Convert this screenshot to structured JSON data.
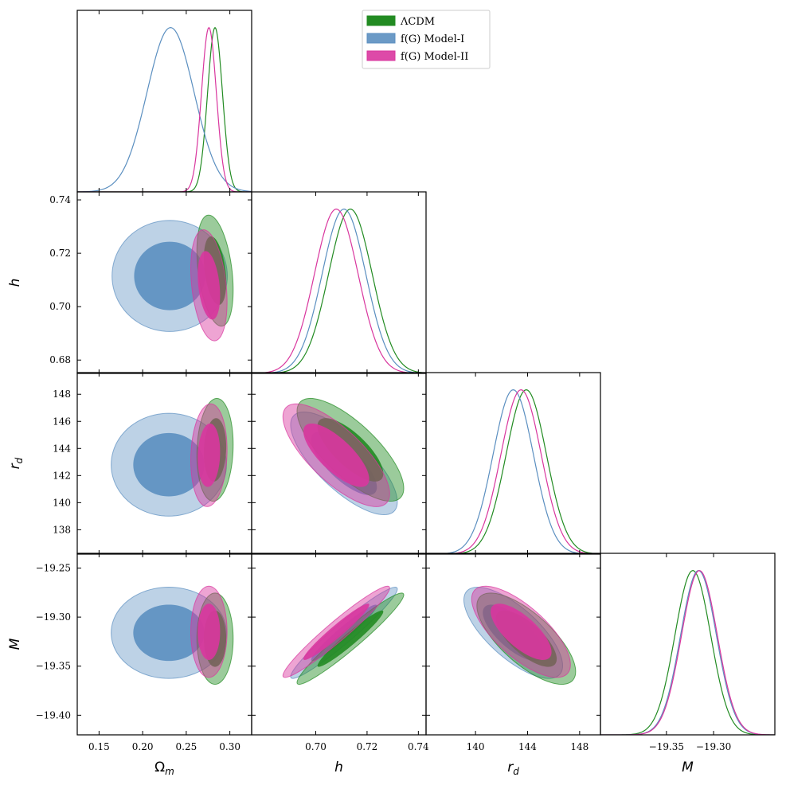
{
  "chart_data": {
    "type": "corner",
    "title": "",
    "colors": {
      "LCDM": "#228b22",
      "ModelI": "#5b8fc0",
      "ModelII": "#d9369e"
    },
    "legend": {
      "placement": "top-center",
      "entries": [
        {
          "key": "LCDM",
          "label": "ΛCDM"
        },
        {
          "key": "ModelI",
          "label": "f(G) Model-I"
        },
        {
          "key": "ModelII",
          "label": "f(G) Model-II"
        }
      ]
    },
    "parameters": [
      {
        "key": "Om",
        "label": "Ω",
        "sub": "m",
        "range": [
          0.125,
          0.325
        ],
        "ticks": [
          0.15,
          0.2,
          0.25,
          0.3
        ],
        "tick_labels": [
          "0.15",
          "0.20",
          "0.25",
          "0.30"
        ]
      },
      {
        "key": "h",
        "label": "h",
        "range": [
          0.675,
          0.743
        ],
        "ticks": [
          0.68,
          0.7,
          0.72,
          0.74
        ],
        "tick_labels": [
          "0.68",
          "0.70",
          "0.72",
          "0.74"
        ],
        "x_tick_labels": [
          "0.70",
          "0.72",
          "0.74"
        ]
      },
      {
        "key": "rd",
        "label": "r",
        "sub": "d",
        "range": [
          136.2,
          149.6
        ],
        "ticks": [
          138,
          140,
          142,
          144,
          146,
          148
        ],
        "tick_labels": [
          "138",
          "140",
          "142",
          "144",
          "146",
          "148"
        ],
        "x_ticks": [
          140,
          144,
          148
        ],
        "x_tick_labels": [
          "140",
          "144",
          "148"
        ]
      },
      {
        "key": "M",
        "label": "M",
        "range": [
          -19.42,
          -19.235
        ],
        "ticks": [
          -19.25,
          -19.3,
          -19.35,
          -19.4
        ],
        "tick_labels": [
          "−19.25",
          "−19.30",
          "−19.35",
          "−19.40"
        ],
        "x_ticks": [
          -19.35,
          -19.3
        ],
        "x_tick_labels": [
          "−19.35",
          "−19.30"
        ]
      }
    ],
    "marginals": {
      "Om": [
        {
          "model": "LCDM",
          "mean": 0.283,
          "sigma": 0.0085
        },
        {
          "model": "ModelI",
          "mean": 0.232,
          "sigma": 0.027
        },
        {
          "model": "ModelII",
          "mean": 0.276,
          "sigma": 0.0085
        }
      ],
      "h": [
        {
          "model": "LCDM",
          "mean": 0.7135,
          "sigma": 0.0085
        },
        {
          "model": "ModelI",
          "mean": 0.711,
          "sigma": 0.0085
        },
        {
          "model": "ModelII",
          "mean": 0.708,
          "sigma": 0.0085
        }
      ],
      "rd": [
        {
          "model": "LCDM",
          "mean": 143.9,
          "sigma": 1.55
        },
        {
          "model": "ModelI",
          "mean": 142.9,
          "sigma": 1.55
        },
        {
          "model": "ModelII",
          "mean": 143.5,
          "sigma": 1.55
        }
      ],
      "M": [
        {
          "model": "LCDM",
          "mean": -19.322,
          "sigma": 0.019
        },
        {
          "model": "ModelI",
          "mean": -19.316,
          "sigma": 0.019
        },
        {
          "model": "ModelII",
          "mean": -19.315,
          "sigma": 0.019
        }
      ]
    },
    "contours_note": "Each contour is an ellipse in data units: center (cx, cy), 1-sigma half-widths (sx, sy), correlation rho; inner region 68%, outer region 95%.",
    "contours": [
      {
        "x": "Om",
        "y": "h",
        "model": "ModelI",
        "cx": 0.231,
        "cy": 0.7115,
        "sx": 0.027,
        "sy": 0.0085,
        "rho": 0.0
      },
      {
        "x": "Om",
        "y": "h",
        "model": "LCDM",
        "cx": 0.283,
        "cy": 0.7135,
        "sx": 0.0085,
        "sy": 0.0085,
        "rho": -0.35
      },
      {
        "x": "Om",
        "y": "h",
        "model": "ModelII",
        "cx": 0.276,
        "cy": 0.708,
        "sx": 0.0085,
        "sy": 0.0085,
        "rho": -0.3
      },
      {
        "x": "Om",
        "y": "rd",
        "model": "ModelI",
        "cx": 0.23,
        "cy": 142.8,
        "sx": 0.027,
        "sy": 1.55,
        "rho": 0.0
      },
      {
        "x": "Om",
        "y": "rd",
        "model": "LCDM",
        "cx": 0.283,
        "cy": 143.9,
        "sx": 0.0085,
        "sy": 1.55,
        "rho": 0.1
      },
      {
        "x": "Om",
        "y": "rd",
        "model": "ModelII",
        "cx": 0.276,
        "cy": 143.5,
        "sx": 0.0085,
        "sy": 1.55,
        "rho": 0.1
      },
      {
        "x": "Om",
        "y": "M",
        "model": "ModelI",
        "cx": 0.23,
        "cy": -19.316,
        "sx": 0.027,
        "sy": 0.019,
        "rho": 0.0
      },
      {
        "x": "Om",
        "y": "M",
        "model": "LCDM",
        "cx": 0.283,
        "cy": -19.322,
        "sx": 0.0085,
        "sy": 0.019,
        "rho": 0.0
      },
      {
        "x": "Om",
        "y": "M",
        "model": "ModelII",
        "cx": 0.276,
        "cy": -19.315,
        "sx": 0.0085,
        "sy": 0.019,
        "rho": 0.0
      },
      {
        "x": "h",
        "y": "rd",
        "model": "ModelI",
        "cx": 0.711,
        "cy": 142.9,
        "sx": 0.0085,
        "sy": 1.55,
        "rho": -0.75
      },
      {
        "x": "h",
        "y": "rd",
        "model": "LCDM",
        "cx": 0.7135,
        "cy": 143.9,
        "sx": 0.0085,
        "sy": 1.55,
        "rho": -0.75
      },
      {
        "x": "h",
        "y": "rd",
        "model": "ModelII",
        "cx": 0.708,
        "cy": 143.5,
        "sx": 0.0085,
        "sy": 1.55,
        "rho": -0.75
      },
      {
        "x": "h",
        "y": "M",
        "model": "ModelI",
        "cx": 0.711,
        "cy": -19.316,
        "sx": 0.0085,
        "sy": 0.019,
        "rho": 0.96
      },
      {
        "x": "h",
        "y": "M",
        "model": "LCDM",
        "cx": 0.7135,
        "cy": -19.322,
        "sx": 0.0085,
        "sy": 0.019,
        "rho": 0.96
      },
      {
        "x": "h",
        "y": "M",
        "model": "ModelII",
        "cx": 0.708,
        "cy": -19.315,
        "sx": 0.0085,
        "sy": 0.019,
        "rho": 0.96
      },
      {
        "x": "rd",
        "y": "M",
        "model": "ModelI",
        "cx": 142.9,
        "cy": -19.316,
        "sx": 1.55,
        "sy": 0.019,
        "rho": -0.72
      },
      {
        "x": "rd",
        "y": "M",
        "model": "LCDM",
        "cx": 143.9,
        "cy": -19.322,
        "sx": 1.55,
        "sy": 0.019,
        "rho": -0.72
      },
      {
        "x": "rd",
        "y": "M",
        "model": "ModelII",
        "cx": 143.5,
        "cy": -19.315,
        "sx": 1.55,
        "sy": 0.019,
        "rho": -0.72
      }
    ]
  }
}
